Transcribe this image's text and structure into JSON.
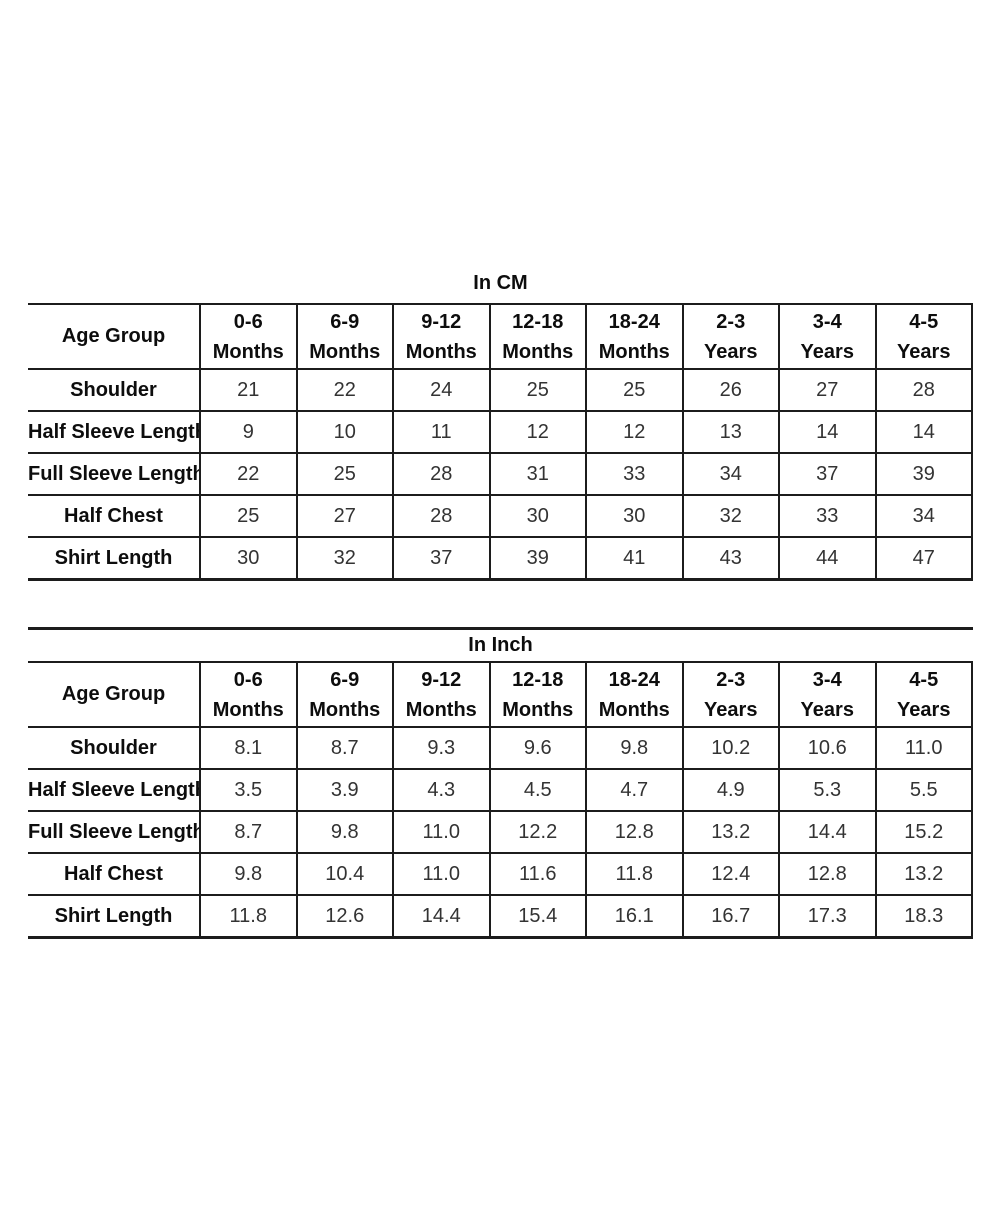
{
  "page": {
    "background_color": "#ffffff",
    "border_color": "#1c1c1c",
    "text_color": "#0d0d0d",
    "value_text_color": "#333333"
  },
  "chart_data": [
    {
      "type": "table",
      "title": "In CM",
      "label_column_header": "Age Group",
      "age_groups": [
        {
          "range": "0-6",
          "unit": "Months"
        },
        {
          "range": "6-9",
          "unit": "Months"
        },
        {
          "range": "9-12",
          "unit": "Months"
        },
        {
          "range": "12-18",
          "unit": "Months"
        },
        {
          "range": "18-24",
          "unit": "Months"
        },
        {
          "range": "2-3",
          "unit": "Years"
        },
        {
          "range": "3-4",
          "unit": "Years"
        },
        {
          "range": "4-5",
          "unit": "Years"
        }
      ],
      "rows": [
        {
          "label": "Shoulder",
          "values": [
            "21",
            "22",
            "24",
            "25",
            "25",
            "26",
            "27",
            "28"
          ]
        },
        {
          "label": "Half Sleeve Length",
          "values": [
            "9",
            "10",
            "11",
            "12",
            "12",
            "13",
            "14",
            "14"
          ]
        },
        {
          "label": "Full Sleeve Length",
          "values": [
            "22",
            "25",
            "28",
            "31",
            "33",
            "34",
            "37",
            "39"
          ]
        },
        {
          "label": "Half Chest",
          "values": [
            "25",
            "27",
            "28",
            "30",
            "30",
            "32",
            "33",
            "34"
          ]
        },
        {
          "label": "Shirt Length",
          "values": [
            "30",
            "32",
            "37",
            "39",
            "41",
            "43",
            "44",
            "47"
          ]
        }
      ]
    },
    {
      "type": "table",
      "title": "In Inch",
      "label_column_header": "Age Group",
      "age_groups": [
        {
          "range": "0-6",
          "unit": "Months"
        },
        {
          "range": "6-9",
          "unit": "Months"
        },
        {
          "range": "9-12",
          "unit": "Months"
        },
        {
          "range": "12-18",
          "unit": "Months"
        },
        {
          "range": "18-24",
          "unit": "Months"
        },
        {
          "range": "2-3",
          "unit": "Years"
        },
        {
          "range": "3-4",
          "unit": "Years"
        },
        {
          "range": "4-5",
          "unit": "Years"
        }
      ],
      "rows": [
        {
          "label": "Shoulder",
          "values": [
            "8.1",
            "8.7",
            "9.3",
            "9.6",
            "9.8",
            "10.2",
            "10.6",
            "11.0"
          ]
        },
        {
          "label": "Half Sleeve Length",
          "values": [
            "3.5",
            "3.9",
            "4.3",
            "4.5",
            "4.7",
            "4.9",
            "5.3",
            "5.5"
          ]
        },
        {
          "label": "Full Sleeve Length",
          "values": [
            "8.7",
            "9.8",
            "11.0",
            "12.2",
            "12.8",
            "13.2",
            "14.4",
            "15.2"
          ]
        },
        {
          "label": "Half Chest",
          "values": [
            "9.8",
            "10.4",
            "11.0",
            "11.6",
            "11.8",
            "12.4",
            "12.8",
            "13.2"
          ]
        },
        {
          "label": "Shirt Length",
          "values": [
            "11.8",
            "12.6",
            "14.4",
            "15.4",
            "16.1",
            "16.7",
            "17.3",
            "18.3"
          ]
        }
      ]
    }
  ]
}
